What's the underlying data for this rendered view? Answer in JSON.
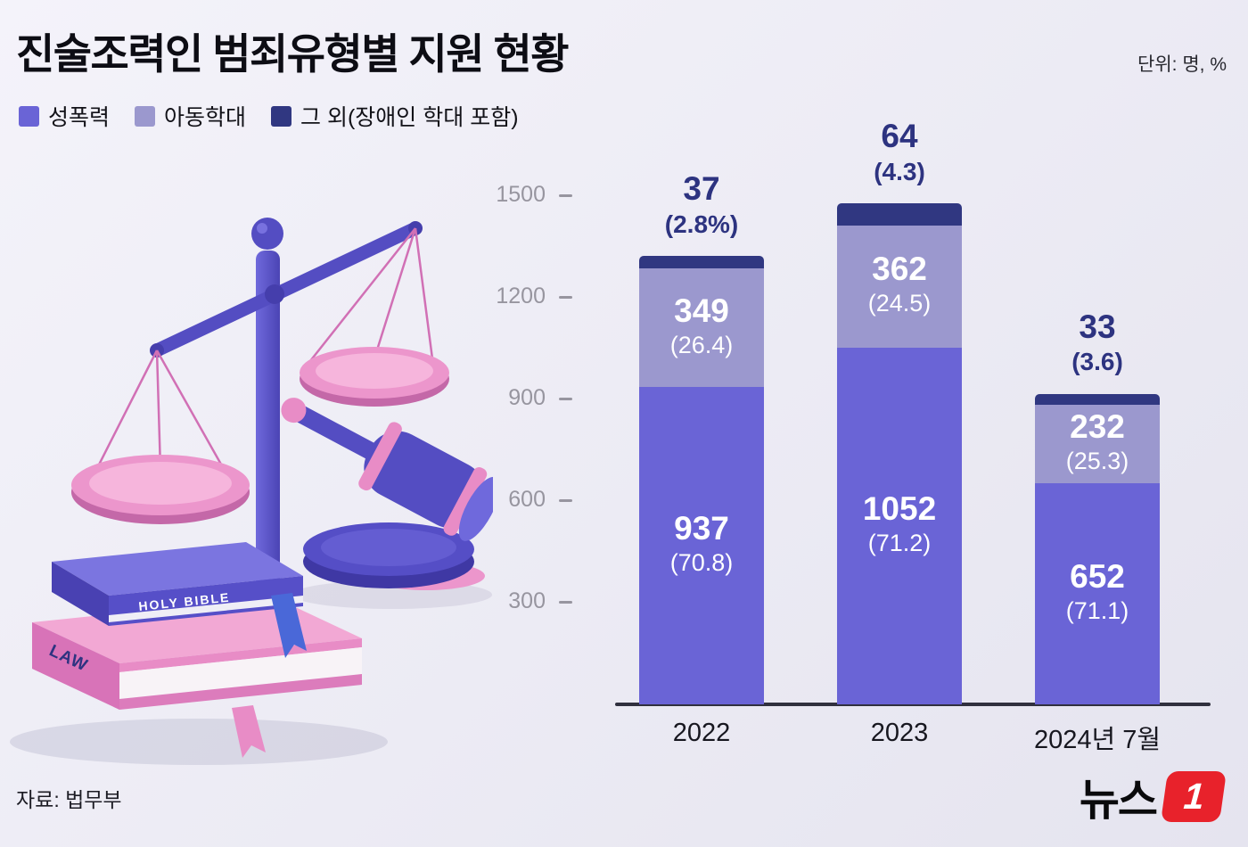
{
  "header": {
    "title": "진술조력인 범죄유형별 지원 현황",
    "unit_label": "단위: 명, %"
  },
  "legend": [
    {
      "label": "성폭력",
      "color": "#6A64D6"
    },
    {
      "label": "아동학대",
      "color": "#9B98CE"
    },
    {
      "label": "그 외(장애인 학대 포함)",
      "color": "#303781"
    }
  ],
  "chart_data": {
    "type": "bar",
    "stacked": true,
    "title": "진술조력인 범죄유형별 지원 현황",
    "unit": "명, %",
    "categories": [
      "2022",
      "2023",
      "2024년 7월"
    ],
    "series": [
      {
        "name": "성폭력",
        "color": "#6A64D6",
        "values": [
          937,
          1052,
          652
        ],
        "pct_labels": [
          "(70.8)",
          "(71.2)",
          "(71.1)"
        ]
      },
      {
        "name": "아동학대",
        "color": "#9B98CE",
        "values": [
          349,
          362,
          232
        ],
        "pct_labels": [
          "(26.4)",
          "(24.5)",
          "(25.3)"
        ]
      },
      {
        "name": "그 외(장애인 학대 포함)",
        "color": "#303781",
        "values": [
          37,
          64,
          33
        ],
        "pct_labels": [
          "(2.8%)",
          "(4.3)",
          "(3.6)"
        ]
      }
    ],
    "top_labels": [
      {
        "value": "37",
        "pct": "(2.8%)"
      },
      {
        "value": "64",
        "pct": "(4.3)"
      },
      {
        "value": "33",
        "pct": "(3.6)"
      }
    ],
    "totals": [
      1323,
      1478,
      917
    ],
    "y_ticks": [
      1500,
      1200,
      900,
      600,
      300
    ],
    "ylim": [
      0,
      1580
    ],
    "grid": false,
    "legend_position": "top-left"
  },
  "illustration": {
    "book_top_label": "HOLY BIBLE",
    "book_bottom_label": "LAW"
  },
  "footer": {
    "source": "자료: 법무부",
    "logo_text": "뉴스",
    "logo_one": "1"
  }
}
